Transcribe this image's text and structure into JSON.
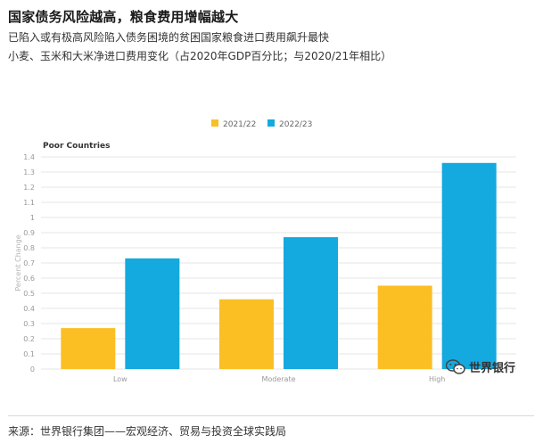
{
  "header": {
    "title": "国家债务风险越高，粮食费用增幅越大",
    "subtitle_line1": "已陷入或有极高风险陷入债务困境的贫困国家粮食进口费用飙升最快",
    "subtitle_line2": "小麦、玉米和大米净进口费用变化（占2020年GDP百分比；与2020/21年相比）"
  },
  "footer": {
    "source": "来源：世界银行集团——宏观经济、贸易与投资全球实践局",
    "watermark": "世界银行"
  },
  "colors": {
    "series1": "#FBBF24",
    "series2": "#14A9DF",
    "grid": "#e6e6e6",
    "axis_text": "#999999"
  },
  "chart_data": {
    "type": "bar",
    "title": "Poor Countries",
    "ylabel": "Percent Change",
    "xlabel": "",
    "categories": [
      "Low",
      "Moderate",
      "High"
    ],
    "series": [
      {
        "name": "2021/22",
        "values": [
          0.27,
          0.46,
          0.55
        ]
      },
      {
        "name": "2022/23",
        "values": [
          0.73,
          0.87,
          1.36
        ]
      }
    ],
    "ylim": [
      0,
      1.4
    ],
    "yticks": [
      "0",
      "0.1",
      "0.2",
      "0.3",
      "0.4",
      "0.5",
      "0.6",
      "0.7",
      "0.8",
      "0.9",
      "1",
      "1.1",
      "1.2",
      "1.3",
      "1.4"
    ],
    "grid": true,
    "legend_position": "top-center"
  }
}
